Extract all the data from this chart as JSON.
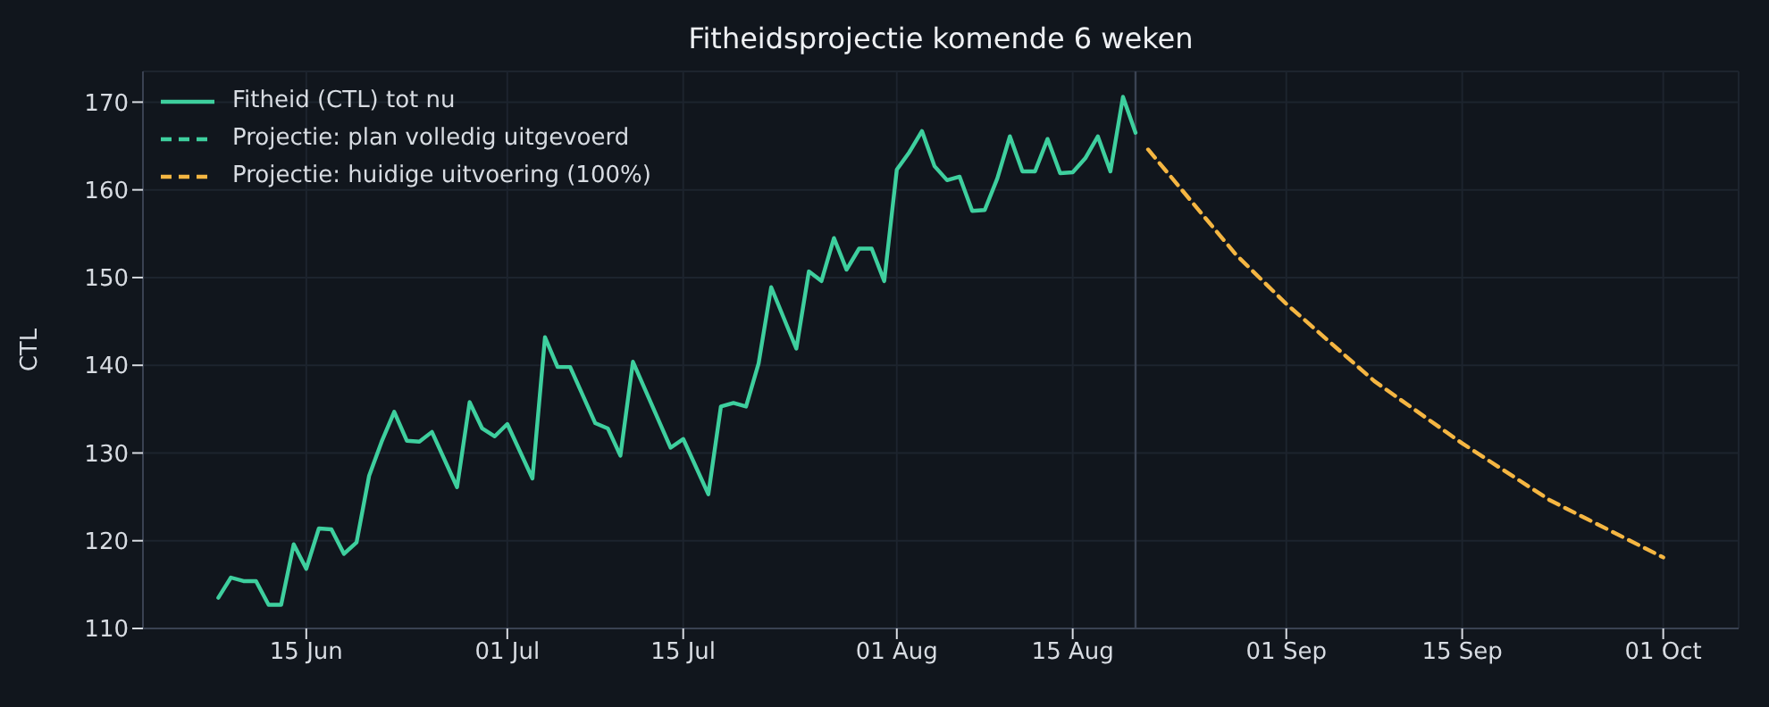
{
  "chart_data": {
    "type": "line",
    "title": "Fitheidsprojectie komende 6 weken",
    "ylabel": "CTL",
    "xlim": [
      "--06-02",
      "--10-07"
    ],
    "xticks": [
      {
        "value": "--06-15",
        "label": "15 Jun"
      },
      {
        "value": "--07-01",
        "label": "01 Jul"
      },
      {
        "value": "--07-15",
        "label": "15 Jul"
      },
      {
        "value": "--08-01",
        "label": "01 Aug"
      },
      {
        "value": "--08-15",
        "label": "15 Aug"
      },
      {
        "value": "--09-01",
        "label": "01 Sep"
      },
      {
        "value": "--09-15",
        "label": "15 Sep"
      },
      {
        "value": "--10-01",
        "label": "01 Oct"
      }
    ],
    "ylim": [
      110,
      173.5
    ],
    "yticks": [
      110,
      120,
      130,
      140,
      150,
      160,
      170
    ],
    "grid": true,
    "legend": "top left",
    "marker": "none",
    "ref_lines": [
      {
        "axis": "x",
        "value": "--08-20",
        "color": "#3a4252"
      }
    ],
    "series": [
      {
        "name": "Fitheid (CTL) tot nu",
        "color": "#3ecf9e",
        "line_style": "solid",
        "x": [
          "--06-08",
          "--06-09",
          "--06-10",
          "--06-11",
          "--06-12",
          "--06-13",
          "--06-14",
          "--06-15",
          "--06-16",
          "--06-17",
          "--06-18",
          "--06-19",
          "--06-20",
          "--06-21",
          "--06-22",
          "--06-23",
          "--06-24",
          "--06-25",
          "--06-27",
          "--06-28",
          "--06-29",
          "--06-30",
          "--07-01",
          "--07-03",
          "--07-04",
          "--07-05",
          "--07-06",
          "--07-08",
          "--07-09",
          "--07-10",
          "--07-11",
          "--07-14",
          "--07-15",
          "--07-17",
          "--07-18",
          "--07-19",
          "--07-20",
          "--07-21",
          "--07-22",
          "--07-24",
          "--07-25",
          "--07-26",
          "--07-27",
          "--07-28",
          "--07-29",
          "--07-30",
          "--07-31",
          "--08-01",
          "--08-02",
          "--08-03",
          "--08-04",
          "--08-05",
          "--08-06",
          "--08-07",
          "--08-08",
          "--08-09",
          "--08-10",
          "--08-11",
          "--08-12",
          "--08-13",
          "--08-14",
          "--08-15",
          "--08-16",
          "--08-17",
          "--08-18",
          "--08-19",
          "--08-20"
        ],
        "values": [
          113.5,
          115.8,
          115.4,
          115.4,
          112.7,
          112.7,
          119.6,
          116.8,
          121.4,
          121.3,
          118.5,
          119.8,
          127.4,
          131.3,
          134.7,
          131.4,
          131.3,
          132.4,
          126.1,
          135.8,
          132.8,
          131.9,
          133.3,
          127.1,
          143.2,
          139.8,
          139.8,
          133.4,
          132.8,
          129.7,
          140.4,
          130.6,
          131.6,
          125.3,
          135.3,
          135.7,
          135.3,
          140.2,
          148.9,
          141.9,
          150.7,
          149.6,
          154.5,
          150.9,
          153.3,
          153.3,
          149.6,
          162.3,
          164.3,
          166.7,
          162.7,
          161.1,
          161.5,
          157.6,
          157.7,
          161.3,
          166.1,
          162.1,
          162.1,
          165.8,
          161.9,
          162.0,
          163.6,
          166.1,
          162.1,
          170.6,
          166.5
        ]
      },
      {
        "name": "Projectie: plan volledig uitgevoerd",
        "color": "#3ecf9e",
        "line_style": "dashed"
      },
      {
        "name": "Projectie: huidige uitvoering (100%)",
        "color": "#f5b642",
        "line_style": "dashed",
        "x": [
          "--08-21",
          "--08-28",
          "--09-01",
          "--09-08",
          "--09-15",
          "--09-22",
          "--10-01"
        ],
        "values": [
          164.6,
          152.6,
          147.0,
          138.2,
          131.1,
          124.6,
          118.1
        ]
      }
    ]
  }
}
